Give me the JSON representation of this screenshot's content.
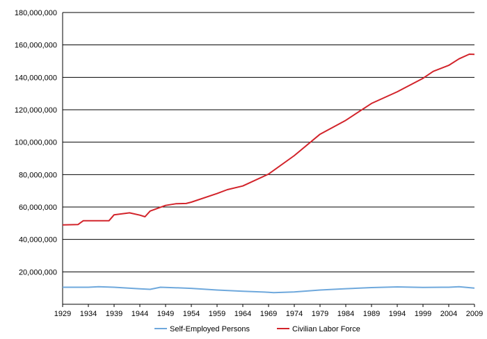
{
  "chart_data": {
    "type": "line",
    "title": "",
    "xlabel": "",
    "ylabel": "",
    "xlim": [
      1929,
      2009
    ],
    "ylim": [
      0,
      180000000
    ],
    "x_ticks": [
      1929,
      1934,
      1939,
      1944,
      1949,
      1954,
      1959,
      1964,
      1969,
      1974,
      1979,
      1984,
      1989,
      1994,
      1999,
      2004,
      2009
    ],
    "y_ticks": [
      {
        "value": 20000000,
        "label": "20,000,000"
      },
      {
        "value": 40000000,
        "label": "40,000,000"
      },
      {
        "value": 60000000,
        "label": "60,000,000"
      },
      {
        "value": 80000000,
        "label": "80,000,000"
      },
      {
        "value": 100000000,
        "label": "100,000,000"
      },
      {
        "value": 120000000,
        "label": "120,000,000"
      },
      {
        "value": 140000000,
        "label": "140,000,000"
      },
      {
        "value": 160000000,
        "label": "160,000,000"
      },
      {
        "value": 180000000,
        "label": "180,000,000"
      }
    ],
    "grid": "horizontal",
    "legend_position": "bottom",
    "series": [
      {
        "name": "Self-Employed Persons",
        "color": "#6ea8dc",
        "points": [
          [
            1929,
            10500000
          ],
          [
            1934,
            10500000
          ],
          [
            1936,
            10800000
          ],
          [
            1939,
            10500000
          ],
          [
            1944,
            9500000
          ],
          [
            1946,
            9200000
          ],
          [
            1948,
            10500000
          ],
          [
            1949,
            10400000
          ],
          [
            1954,
            9800000
          ],
          [
            1959,
            8800000
          ],
          [
            1964,
            8000000
          ],
          [
            1969,
            7400000
          ],
          [
            1970,
            7200000
          ],
          [
            1974,
            7600000
          ],
          [
            1979,
            8800000
          ],
          [
            1984,
            9600000
          ],
          [
            1989,
            10300000
          ],
          [
            1994,
            10700000
          ],
          [
            1999,
            10400000
          ],
          [
            2004,
            10500000
          ],
          [
            2006,
            10800000
          ],
          [
            2009,
            10000000
          ]
        ]
      },
      {
        "name": "Civilian Labor Force",
        "color": "#d2232a",
        "points": [
          [
            1929,
            49000000
          ],
          [
            1932,
            49200000
          ],
          [
            1933,
            51500000
          ],
          [
            1938,
            51500000
          ],
          [
            1939,
            55200000
          ],
          [
            1942,
            56400000
          ],
          [
            1944,
            55000000
          ],
          [
            1945,
            54000000
          ],
          [
            1946,
            57500000
          ],
          [
            1949,
            61000000
          ],
          [
            1951,
            62000000
          ],
          [
            1953,
            62200000
          ],
          [
            1954,
            63000000
          ],
          [
            1959,
            68300000
          ],
          [
            1961,
            70700000
          ],
          [
            1964,
            73000000
          ],
          [
            1969,
            80300000
          ],
          [
            1974,
            91700000
          ],
          [
            1979,
            104900000
          ],
          [
            1984,
            113500000
          ],
          [
            1989,
            123900000
          ],
          [
            1994,
            131100000
          ],
          [
            1999,
            139400000
          ],
          [
            2001,
            143700000
          ],
          [
            2004,
            147400000
          ],
          [
            2006,
            151400000
          ],
          [
            2008,
            154300000
          ],
          [
            2009,
            154200000
          ]
        ]
      }
    ]
  }
}
